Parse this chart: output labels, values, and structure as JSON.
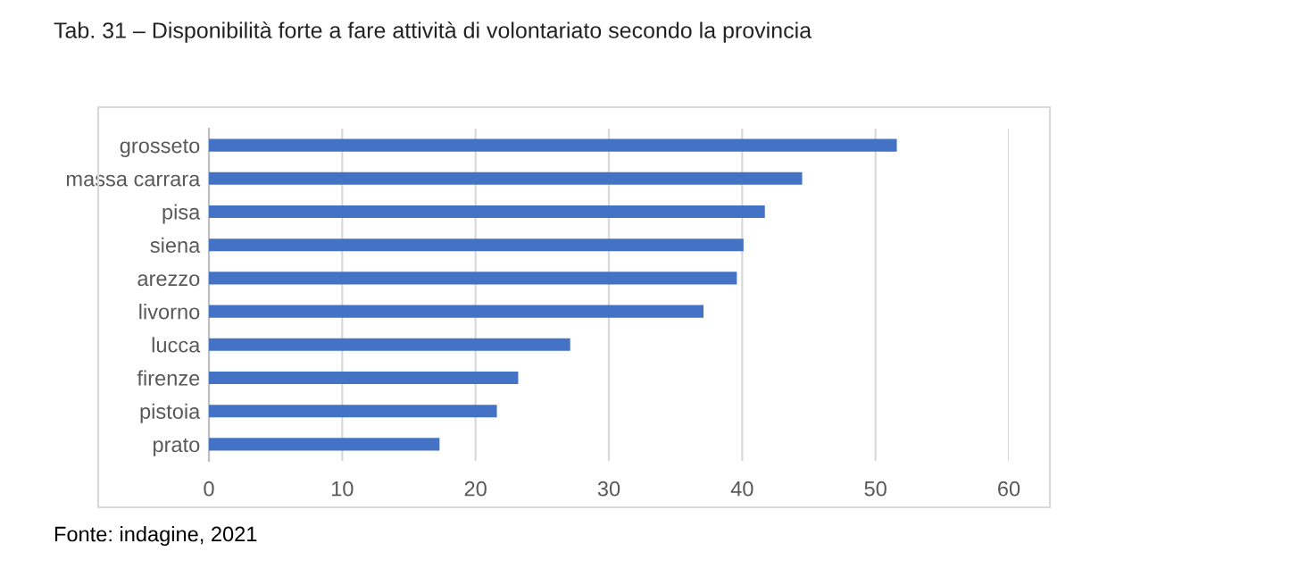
{
  "chart_data": {
    "type": "bar",
    "orientation": "horizontal",
    "title": "Tab. 31 – Disponibilità forte a fare attività di volontariato secondo la provincia",
    "categories": [
      "grosseto",
      "massa carrara",
      "pisa",
      "siena",
      "arezzo",
      "livorno",
      "lucca",
      "firenze",
      "pistoia",
      "prato"
    ],
    "values": [
      51.6,
      44.5,
      41.7,
      40.1,
      39.6,
      37.1,
      27.1,
      23.2,
      21.6,
      17.3
    ],
    "color": "#4472c4",
    "xlim": [
      0,
      60
    ],
    "xticks": [
      0,
      10,
      20,
      30,
      40,
      50,
      60
    ],
    "grid": "x",
    "annotations": [
      "Fonte: indagine, 2021"
    ]
  }
}
